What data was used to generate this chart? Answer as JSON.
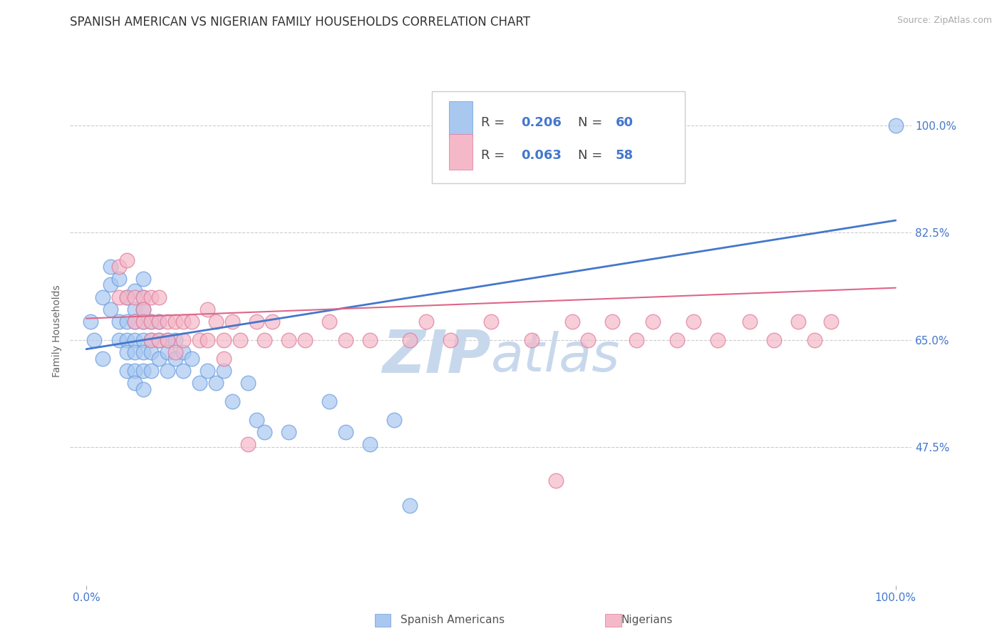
{
  "title": "SPANISH AMERICAN VS NIGERIAN FAMILY HOUSEHOLDS CORRELATION CHART",
  "source_text": "Source: ZipAtlas.com",
  "ylabel": "Family Households",
  "y_ticks": [
    0.475,
    0.65,
    0.825,
    1.0
  ],
  "y_tick_labels": [
    "47.5%",
    "65.0%",
    "82.5%",
    "100.0%"
  ],
  "xlim": [
    -0.02,
    1.02
  ],
  "ylim": [
    0.25,
    1.08
  ],
  "blue_color": "#a8c8f0",
  "pink_color": "#f5b8c8",
  "blue_edge_color": "#6699dd",
  "pink_edge_color": "#dd7799",
  "blue_line_color": "#4477cc",
  "pink_line_color": "#dd6688",
  "grid_color": "#cccccc",
  "watermark_color": "#c8d8ec",
  "label1": "Spanish Americans",
  "label2": "Nigerians",
  "blue_scatter_x": [
    0.005,
    0.01,
    0.02,
    0.02,
    0.03,
    0.03,
    0.03,
    0.04,
    0.04,
    0.04,
    0.05,
    0.05,
    0.05,
    0.05,
    0.05,
    0.06,
    0.06,
    0.06,
    0.06,
    0.06,
    0.06,
    0.06,
    0.07,
    0.07,
    0.07,
    0.07,
    0.07,
    0.07,
    0.07,
    0.07,
    0.08,
    0.08,
    0.08,
    0.08,
    0.09,
    0.09,
    0.09,
    0.1,
    0.1,
    0.1,
    0.11,
    0.11,
    0.12,
    0.12,
    0.13,
    0.14,
    0.15,
    0.16,
    0.17,
    0.18,
    0.2,
    0.21,
    0.22,
    0.25,
    0.3,
    0.32,
    0.35,
    0.38,
    0.4,
    1.0
  ],
  "blue_scatter_y": [
    0.68,
    0.65,
    0.72,
    0.62,
    0.77,
    0.74,
    0.7,
    0.75,
    0.68,
    0.65,
    0.72,
    0.68,
    0.65,
    0.63,
    0.6,
    0.73,
    0.7,
    0.68,
    0.65,
    0.63,
    0.6,
    0.58,
    0.75,
    0.72,
    0.7,
    0.68,
    0.65,
    0.63,
    0.6,
    0.57,
    0.68,
    0.65,
    0.63,
    0.6,
    0.68,
    0.65,
    0.62,
    0.65,
    0.63,
    0.6,
    0.65,
    0.62,
    0.63,
    0.6,
    0.62,
    0.58,
    0.6,
    0.58,
    0.6,
    0.55,
    0.58,
    0.52,
    0.5,
    0.5,
    0.55,
    0.5,
    0.48,
    0.52,
    0.38,
    1.0
  ],
  "pink_scatter_x": [
    0.04,
    0.04,
    0.05,
    0.05,
    0.06,
    0.06,
    0.07,
    0.07,
    0.07,
    0.08,
    0.08,
    0.08,
    0.09,
    0.09,
    0.09,
    0.1,
    0.1,
    0.11,
    0.11,
    0.12,
    0.12,
    0.13,
    0.14,
    0.15,
    0.15,
    0.16,
    0.17,
    0.17,
    0.18,
    0.19,
    0.2,
    0.21,
    0.22,
    0.23,
    0.25,
    0.27,
    0.3,
    0.32,
    0.35,
    0.4,
    0.42,
    0.45,
    0.5,
    0.55,
    0.58,
    0.6,
    0.62,
    0.65,
    0.68,
    0.7,
    0.73,
    0.75,
    0.78,
    0.82,
    0.85,
    0.88,
    0.9,
    0.92
  ],
  "pink_scatter_y": [
    0.77,
    0.72,
    0.78,
    0.72,
    0.72,
    0.68,
    0.72,
    0.7,
    0.68,
    0.72,
    0.68,
    0.65,
    0.72,
    0.68,
    0.65,
    0.68,
    0.65,
    0.68,
    0.63,
    0.68,
    0.65,
    0.68,
    0.65,
    0.7,
    0.65,
    0.68,
    0.65,
    0.62,
    0.68,
    0.65,
    0.48,
    0.68,
    0.65,
    0.68,
    0.65,
    0.65,
    0.68,
    0.65,
    0.65,
    0.65,
    0.68,
    0.65,
    0.68,
    0.65,
    0.42,
    0.68,
    0.65,
    0.68,
    0.65,
    0.68,
    0.65,
    0.68,
    0.65,
    0.68,
    0.65,
    0.68,
    0.65,
    0.68
  ],
  "blue_line_y0": 0.635,
  "blue_line_y1": 0.845,
  "pink_line_y0": 0.685,
  "pink_line_y1": 0.735,
  "title_fontsize": 12,
  "axis_label_fontsize": 10,
  "tick_fontsize": 11,
  "legend_fontsize": 13,
  "watermark_fontsize": 60,
  "background_color": "#ffffff"
}
